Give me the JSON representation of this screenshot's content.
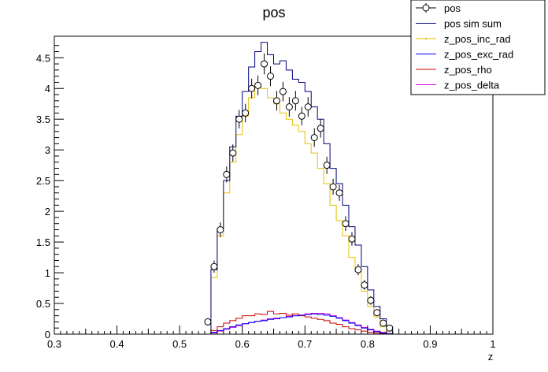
{
  "chart_data": {
    "type": "line",
    "title": "pos",
    "xlabel": "z",
    "ylabel": "",
    "xlim": [
      0.3,
      1.0
    ],
    "ylim": [
      0,
      4.85
    ],
    "x_ticks": [
      "0.3",
      "0.4",
      "0.5",
      "0.6",
      "0.7",
      "0.8",
      "0.9",
      "1"
    ],
    "y_ticks": [
      "0",
      "0.5",
      "1",
      "1.5",
      "2",
      "2.5",
      "3",
      "3.5",
      "4",
      "4.5"
    ],
    "grid": false,
    "legend_position": "top-right",
    "bin_edges_start": 0.55,
    "bin_width": 0.01,
    "series": [
      {
        "name": "pos",
        "style": "points",
        "color": "#000000",
        "x": [
          0.545,
          0.555,
          0.565,
          0.575,
          0.585,
          0.595,
          0.605,
          0.615,
          0.625,
          0.635,
          0.645,
          0.655,
          0.665,
          0.675,
          0.685,
          0.695,
          0.705,
          0.715,
          0.725,
          0.735,
          0.745,
          0.755,
          0.765,
          0.775,
          0.785,
          0.795,
          0.805,
          0.815,
          0.825,
          0.835
        ],
        "y": [
          0.2,
          1.1,
          1.7,
          2.6,
          2.95,
          3.5,
          3.6,
          4.0,
          4.05,
          4.4,
          4.2,
          3.8,
          3.95,
          3.7,
          3.8,
          3.55,
          3.7,
          3.2,
          3.35,
          2.75,
          2.4,
          2.3,
          1.8,
          1.55,
          1.05,
          0.8,
          0.55,
          0.35,
          0.18,
          0.1
        ],
        "yerr": [
          0.06,
          0.1,
          0.12,
          0.13,
          0.14,
          0.15,
          0.15,
          0.16,
          0.16,
          0.17,
          0.16,
          0.16,
          0.16,
          0.16,
          0.16,
          0.15,
          0.16,
          0.15,
          0.15,
          0.14,
          0.13,
          0.13,
          0.12,
          0.11,
          0.09,
          0.08,
          0.07,
          0.05,
          0.04,
          0.03
        ]
      },
      {
        "name": "pos sim sum",
        "style": "step",
        "color": "#000080",
        "values": [
          1.05,
          1.72,
          2.5,
          3.05,
          3.55,
          3.95,
          4.35,
          4.6,
          4.75,
          4.55,
          4.4,
          4.45,
          4.3,
          4.15,
          4.1,
          3.95,
          3.7,
          3.5,
          3.1,
          2.7,
          2.45,
          2.1,
          1.75,
          1.45,
          1.1,
          0.72,
          0.45,
          0.25,
          0.12
        ]
      },
      {
        "name": "z_pos_inc_rad",
        "style": "step",
        "color": "#e6c000",
        "values": [
          0.92,
          1.6,
          2.3,
          2.8,
          3.25,
          3.55,
          3.85,
          4.05,
          4.0,
          3.85,
          3.75,
          3.6,
          3.5,
          3.4,
          3.3,
          3.1,
          2.95,
          2.7,
          2.45,
          2.1,
          1.85,
          1.6,
          1.25,
          1.05,
          0.7,
          0.45,
          0.28,
          0.12,
          0.05
        ]
      },
      {
        "name": "z_pos_exc_rad",
        "style": "step",
        "color": "#0000ff",
        "values": [
          0.03,
          0.06,
          0.09,
          0.12,
          0.15,
          0.17,
          0.19,
          0.21,
          0.22,
          0.24,
          0.25,
          0.27,
          0.28,
          0.3,
          0.31,
          0.32,
          0.33,
          0.32,
          0.31,
          0.29,
          0.26,
          0.22,
          0.18,
          0.14,
          0.1,
          0.07,
          0.04,
          0.02,
          0.01
        ]
      },
      {
        "name": "z_pos_rho",
        "style": "step",
        "color": "#cc0000",
        "values": [
          0.06,
          0.12,
          0.18,
          0.22,
          0.26,
          0.3,
          0.3,
          0.33,
          0.32,
          0.37,
          0.33,
          0.34,
          0.31,
          0.33,
          0.3,
          0.28,
          0.26,
          0.24,
          0.22,
          0.18,
          0.16,
          0.12,
          0.09,
          0.07,
          0.05,
          0.03,
          0.02,
          0.01,
          0.005
        ]
      },
      {
        "name": "z_pos_delta",
        "style": "step",
        "color": "#e000e0",
        "values": [
          0.02,
          0.05,
          0.08,
          0.11,
          0.14,
          0.17,
          0.19,
          0.21,
          0.23,
          0.25,
          0.26,
          0.27,
          0.29,
          0.3,
          0.31,
          0.33,
          0.34,
          0.34,
          0.33,
          0.3,
          0.27,
          0.23,
          0.19,
          0.15,
          0.11,
          0.08,
          0.05,
          0.03,
          0.01
        ]
      }
    ]
  }
}
